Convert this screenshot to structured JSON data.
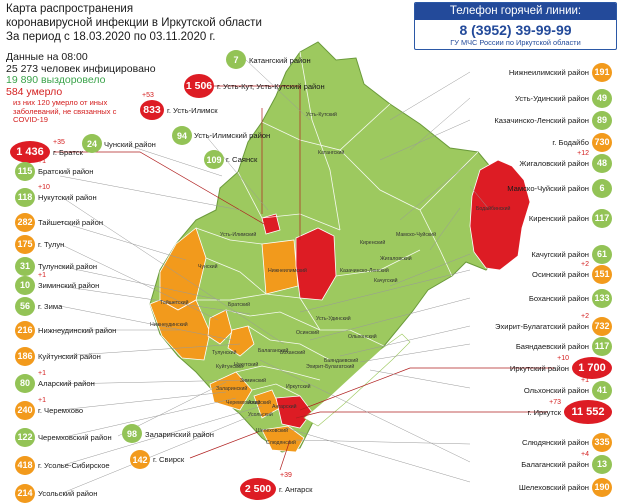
{
  "header": {
    "line1": "Карта распространения",
    "line2": "коронавирусной инфекции в Иркутской области",
    "line3": "За период с 18.03.2020 по 03.11.2020 г."
  },
  "stats": {
    "line1": "Данные на 08:00",
    "line2": "25 273 человек инфицировано",
    "line3": "19 890 выздоровело",
    "line4": "584 умерло",
    "note": "из них 120 умерло от иных заболеваний, не связанных с COVID-19"
  },
  "hotline": {
    "title": "Телефон горячей линии:",
    "number": "8 (3952) 39-99-99",
    "org": "ГУ МЧС России по Иркутской области"
  },
  "colors": {
    "low": "#93c356",
    "medium": "#f29a1c",
    "high": "#dd1c24",
    "region_fill": "#9dc95f"
  },
  "left_regions": [
    {
      "value": "1 436",
      "label": "г. Братск",
      "inc": "+35",
      "level": "high"
    },
    {
      "value": "115",
      "label": "Братский район",
      "inc": "+1",
      "level": "low"
    },
    {
      "value": "118",
      "label": "Нукутский район",
      "inc": "+10",
      "level": "low"
    },
    {
      "value": "282",
      "label": "Тайшетский район",
      "inc": "",
      "level": "medium"
    },
    {
      "value": "175",
      "label": "г. Тулун",
      "inc": "",
      "level": "medium"
    },
    {
      "value": "31",
      "label": "Тулунский район",
      "inc": "",
      "level": "low"
    },
    {
      "value": "10",
      "label": "Зиминский район",
      "inc": "+1",
      "level": "low"
    },
    {
      "value": "56",
      "label": "г. Зима",
      "inc": "",
      "level": "low"
    },
    {
      "value": "216",
      "label": "Нижнеудинский район",
      "inc": "",
      "level": "medium"
    },
    {
      "value": "186",
      "label": "Куйтунский район",
      "inc": "",
      "level": "medium"
    },
    {
      "value": "80",
      "label": "Аларский район",
      "inc": "+1",
      "level": "low"
    },
    {
      "value": "240",
      "label": "г. Черемхово",
      "inc": "+1",
      "level": "medium"
    },
    {
      "value": "122",
      "label": "Черемховский район",
      "inc": "",
      "level": "low"
    },
    {
      "value": "418",
      "label": "г. Усолье-Сибирское",
      "inc": "",
      "level": "medium"
    },
    {
      "value": "214",
      "label": "Усольский район",
      "inc": "",
      "level": "medium"
    }
  ],
  "right_regions": [
    {
      "value": "191",
      "label": "Нижнеилимский район",
      "inc": "",
      "level": "medium"
    },
    {
      "value": "49",
      "label": "Усть-Удинский район",
      "inc": "",
      "level": "low"
    },
    {
      "value": "89",
      "label": "Казачинско-Ленский район",
      "inc": "",
      "level": "low"
    },
    {
      "value": "730",
      "label": "г. Бодайбо",
      "inc": "",
      "level": "medium"
    },
    {
      "value": "48",
      "label": "Жигаловский район",
      "inc": "+12",
      "level": "low"
    },
    {
      "value": "6",
      "label": "Мамско-Чуйский район",
      "inc": "",
      "level": "low"
    },
    {
      "value": "117",
      "label": "Киренский район",
      "inc": "",
      "level": "low"
    },
    {
      "value": "61",
      "label": "Качугский район",
      "inc": "",
      "level": "low"
    },
    {
      "value": "151",
      "label": "Осинский район",
      "inc": "+2",
      "level": "medium"
    },
    {
      "value": "133",
      "label": "Боханский район",
      "inc": "",
      "level": "low"
    },
    {
      "value": "732",
      "label": "Эхирит-Булагатский район",
      "inc": "+2",
      "level": "medium"
    },
    {
      "value": "117",
      "label": "Баяндаевский район",
      "inc": "",
      "level": "low"
    },
    {
      "value": "1 700",
      "label": "Иркутский район",
      "inc": "+10",
      "level": "high"
    },
    {
      "value": "41",
      "label": "Ольхонский район",
      "inc": "+1",
      "level": "low"
    },
    {
      "value": "11 552",
      "label": "г. Иркутск",
      "inc": "+73",
      "level": "high"
    },
    {
      "value": "335",
      "label": "Слюдянский район",
      "inc": "",
      "level": "medium"
    },
    {
      "value": "13",
      "label": "Балаганский район",
      "inc": "+4",
      "level": "low"
    },
    {
      "value": "190",
      "label": "Шелеховский район",
      "inc": "",
      "level": "medium"
    }
  ],
  "top_regions": [
    {
      "value": "7",
      "label": "Катангский район",
      "inc": "",
      "level": "low"
    },
    {
      "value": "1 506",
      "label": "г. Усть-Кут, Усть-Кутский район",
      "inc": "",
      "level": "high"
    },
    {
      "value": "833",
      "label": "г. Усть-Илимск",
      "inc": "+53",
      "level": "high"
    },
    {
      "value": "94",
      "label": "Усть-Илимский район",
      "inc": "",
      "level": "low"
    },
    {
      "value": "24",
      "label": "Чунский район",
      "inc": "",
      "level": "low"
    },
    {
      "value": "109",
      "label": "г. Саянск",
      "inc": "",
      "level": "low"
    }
  ],
  "bottom_regions": [
    {
      "value": "98",
      "label": "Заларинский район",
      "inc": "",
      "level": "low"
    },
    {
      "value": "142",
      "label": "г. Свирск",
      "inc": "",
      "level": "medium"
    },
    {
      "value": "2 500",
      "label": "г. Ангарск",
      "inc": "+39",
      "level": "high"
    }
  ],
  "map_labels": [
    "Катангский",
    "Усть-Кутский",
    "Киренский",
    "Мамско-Чуйский",
    "Бодайбинский",
    "Нижнеилимский",
    "Усть-Илимский",
    "Братский",
    "Чунский",
    "Казачинско-Ленский",
    "Жигаловский",
    "Качугский",
    "Усть-Удинский",
    "Тайшетский",
    "Нижнеудинский",
    "Тулунский",
    "Куйтунский",
    "Зиминский",
    "Балаганский",
    "Осинский",
    "Ольхонский",
    "Заларинский",
    "Черемховский",
    "Аларский",
    "Боханский",
    "Иркутский",
    "Шелеховский",
    "Слюдянский",
    "Нукутский",
    "Эхирит-Булагатский",
    "Баяндаевский",
    "Усольский",
    "Ангарский"
  ]
}
